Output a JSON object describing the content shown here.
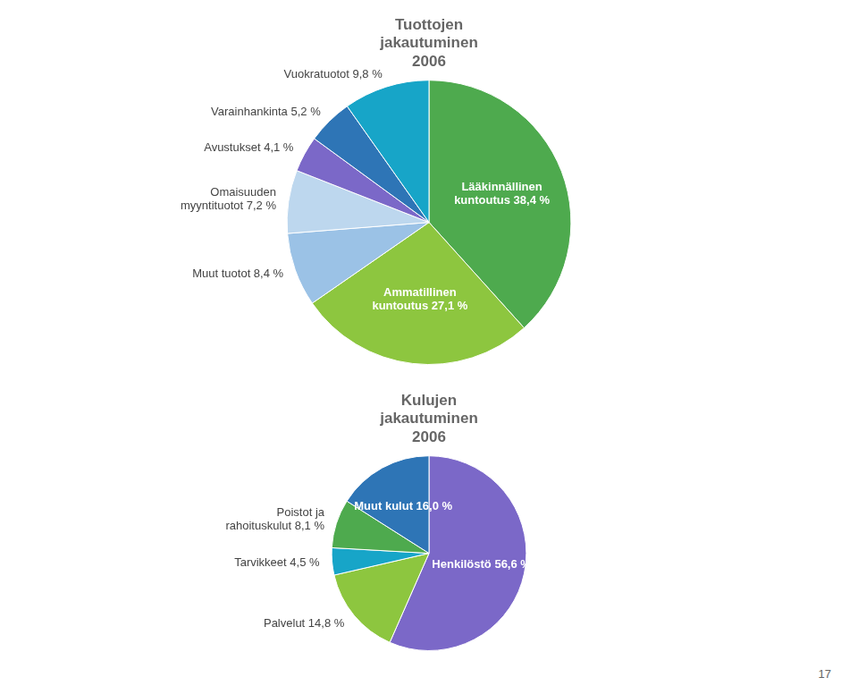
{
  "chart_data": [
    {
      "type": "pie",
      "title": "Tuottojen\njakautuminen\n2006",
      "categories": [
        "Lääkinnällinen\nkuntoutus 38,4 %",
        "Ammatillinen\nkuntoutus 27,1 %",
        "Muut tuotot 8,4 %",
        "Omaisuuden\nmyyntituotot 7,2 %",
        "Avustukset 4,1 %",
        "Varainhankinta 5,2 %",
        "Vuokratuotot 9,8 %"
      ],
      "values": [
        38.4,
        27.1,
        8.4,
        7.2,
        4.1,
        5.2,
        9.8
      ],
      "colors": [
        "#4EAA4E",
        "#8DC63F",
        "#9BC2E6",
        "#BDD7EE",
        "#7B68C8",
        "#2E75B6",
        "#17A5C8"
      ]
    },
    {
      "type": "pie",
      "title": "Kulujen\njakautuminen\n2006",
      "categories": [
        "Henkilöstö 56,6 %",
        "Palvelut 14,8 %",
        "Tarvikkeet 4,5 %",
        "Poistot ja\nrahoituskulut 8,1 %",
        "Muut kulut 16,0 %"
      ],
      "values": [
        56.6,
        14.8,
        4.5,
        8.1,
        16.0
      ],
      "colors": [
        "#7B68C8",
        "#8DC63F",
        "#17A5C8",
        "#4EAA4E",
        "#2E75B6"
      ],
      "annotations": [
        "17"
      ]
    }
  ]
}
